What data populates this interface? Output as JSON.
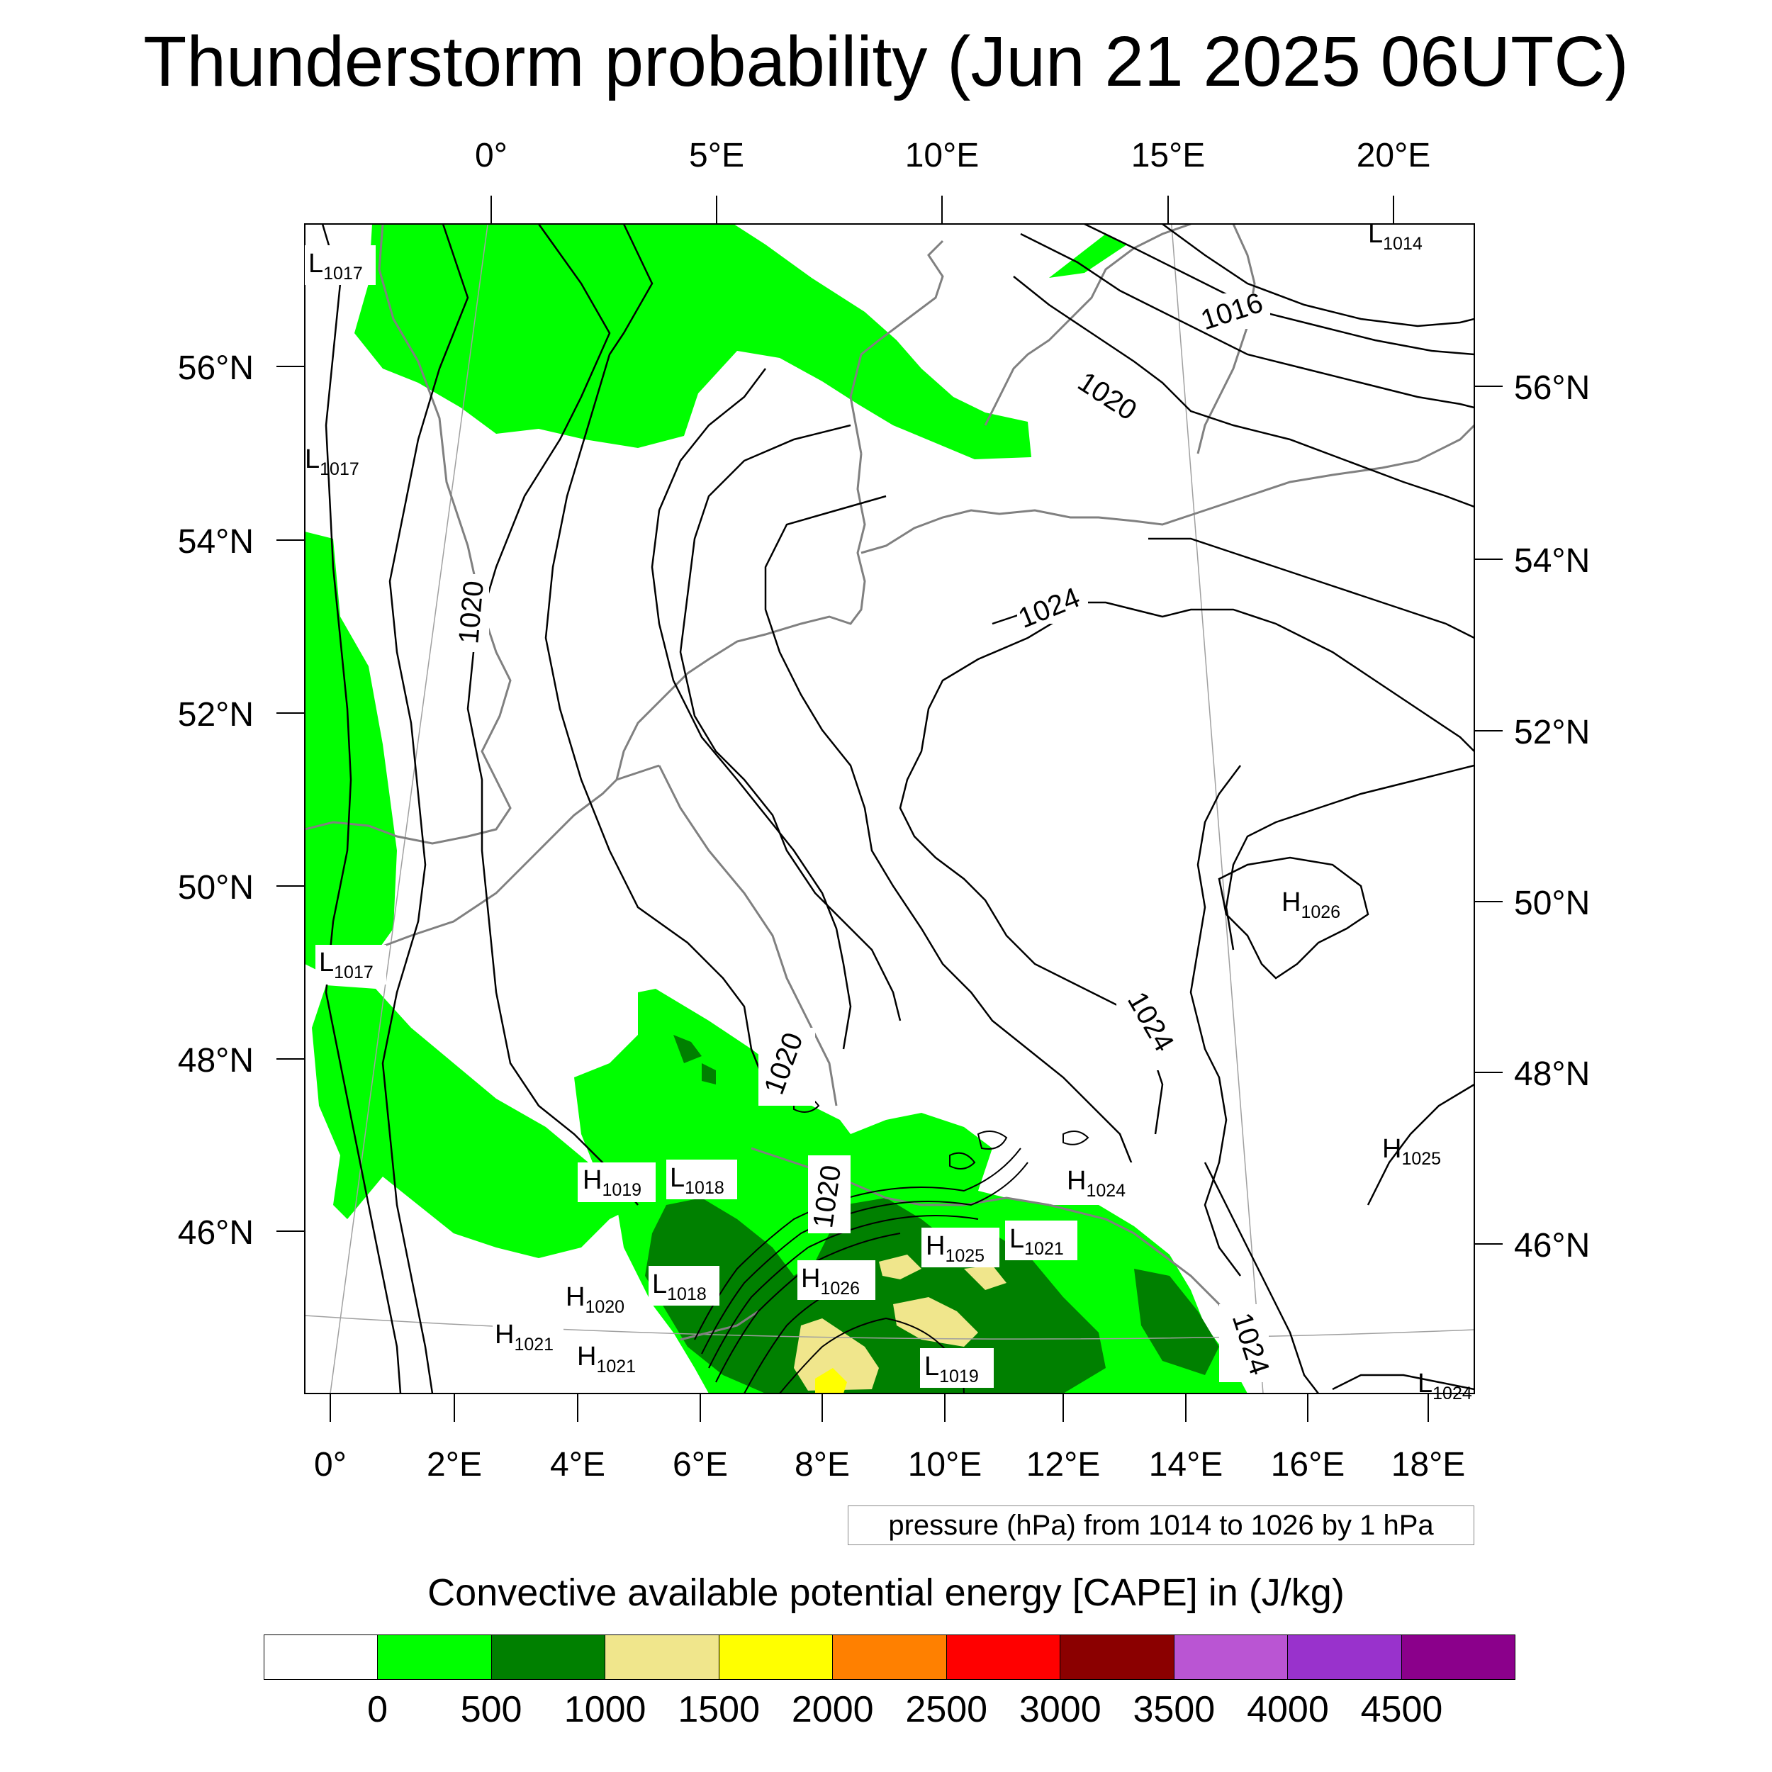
{
  "title": "Thunderstorm probability (Jun 21 2025 06UTC)",
  "map": {
    "top_lon_labels": [
      "0°",
      "5°E",
      "10°E",
      "15°E",
      "20°E"
    ],
    "bottom_lon_labels": [
      "0°",
      "2°E",
      "4°E",
      "6°E",
      "8°E",
      "10°E",
      "12°E",
      "14°E",
      "16°E",
      "18°E"
    ],
    "left_lat_labels": [
      "56°N",
      "54°N",
      "52°N",
      "50°N",
      "48°N",
      "46°N"
    ],
    "right_lat_labels": [
      "56°N",
      "54°N",
      "52°N",
      "50°N",
      "48°N",
      "46°N"
    ],
    "pressure_centers": [
      {
        "type": "L",
        "value": "1014"
      },
      {
        "type": "L",
        "value": "1017"
      },
      {
        "type": "L",
        "value": "1017"
      },
      {
        "type": "L",
        "value": "1017"
      },
      {
        "type": "H",
        "value": "1026"
      },
      {
        "type": "H",
        "value": "1025"
      },
      {
        "type": "H",
        "value": "1024"
      },
      {
        "type": "H",
        "value": "1019"
      },
      {
        "type": "L",
        "value": "1018"
      },
      {
        "type": "L",
        "value": "1018"
      },
      {
        "type": "H",
        "value": "1020"
      },
      {
        "type": "H",
        "value": "1021"
      },
      {
        "type": "H",
        "value": "1021"
      },
      {
        "type": "H",
        "value": "1026"
      },
      {
        "type": "H",
        "value": "1025"
      },
      {
        "type": "L",
        "value": "1021"
      },
      {
        "type": "L",
        "value": "1019"
      },
      {
        "type": "L",
        "value": "1024"
      }
    ],
    "isobar_labels": [
      "1016",
      "1020",
      "1020",
      "1024",
      "1020",
      "1024",
      "1020",
      "1024"
    ],
    "colors": {
      "land_border": "#808080",
      "isobar": "#000000",
      "graticule": "#a0a0a0"
    }
  },
  "contour_note": "pressure (hPa) from 1014 to 1026 by 1 hPa",
  "legend": {
    "title": "Convective available potential energy [CAPE] in (J/kg)",
    "colors": [
      "#ffffff",
      "#00ff00",
      "#008000",
      "#f0e68c",
      "#ffff00",
      "#ff8000",
      "#ff0000",
      "#8b0000",
      "#ba55d3",
      "#9932cc",
      "#8b008b"
    ],
    "labels": [
      "0",
      "500",
      "1000",
      "1500",
      "2000",
      "2500",
      "3000",
      "3500",
      "4000",
      "4500"
    ]
  }
}
